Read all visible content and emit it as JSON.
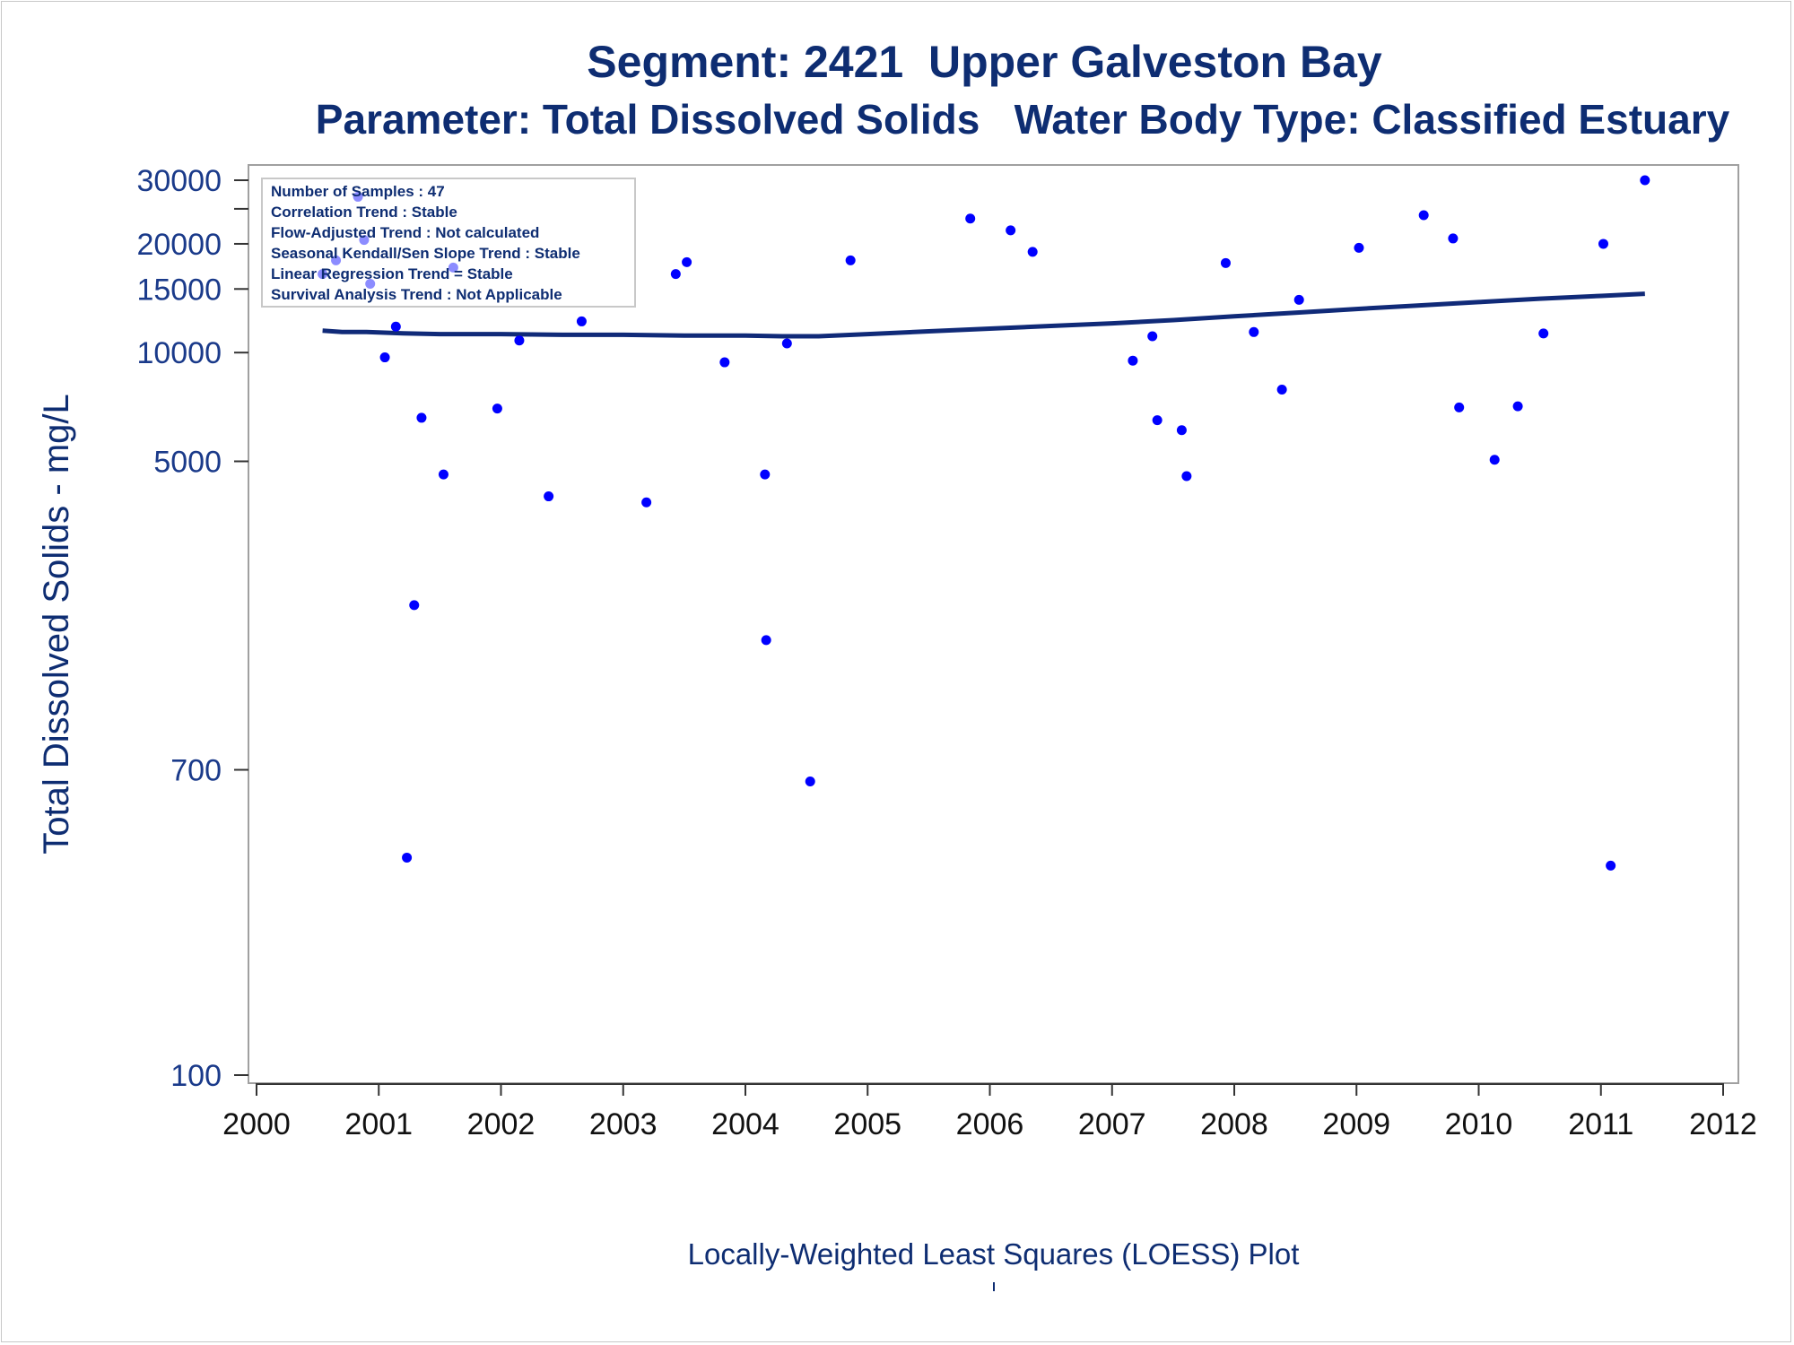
{
  "title": "Segment: 2421  Upper Galveston Bay",
  "subtitle": "Parameter: Total Dissolved Solids   Water Body Type: Classified Estuary",
  "footnote": "Locally-Weighted Least Squares (LOESS) Plot",
  "footnote_mark": "'",
  "colors": {
    "title": "#0e2d72",
    "points": "#0000ff",
    "loess": "#102a78",
    "axis_text": "#1a3a8a",
    "frame": "#a0a0a0"
  },
  "info_box": [
    "Number of Samples : 47",
    "Correlation Trend : Stable",
    "Flow-Adjusted Trend : Not calculated",
    "Seasonal Kendall/Sen Slope Trend : Stable",
    "Linear Regression Trend = Stable",
    "Survival Analysis Trend : Not Applicable"
  ],
  "chart_data": {
    "type": "scatter",
    "title": "Segment: 2421  Upper Galveston Bay",
    "subtitle": "Parameter: Total Dissolved Solids   Water Body Type: Classified Estuary",
    "xlabel": "Locally-Weighted Least Squares (LOESS) Plot",
    "ylabel": "Total Dissolved Solids - mg/L",
    "y_scale": "log",
    "xlim": [
      2000,
      2012
    ],
    "ylim": [
      100,
      30000
    ],
    "x_ticks": [
      2000,
      2001,
      2002,
      2003,
      2004,
      2005,
      2006,
      2007,
      2008,
      2009,
      2010,
      2011,
      2012
    ],
    "y_ticks": [
      100,
      700,
      5000,
      10000,
      15000,
      20000,
      30000
    ],
    "y_tick_labels": [
      "100",
      "700",
      "5000",
      "10000",
      "15000",
      "20000",
      "30000"
    ],
    "y_minor_ticks": [
      25000
    ],
    "grid": false,
    "points": [
      {
        "x": 2000.54,
        "y": 16500
      },
      {
        "x": 2000.65,
        "y": 18000
      },
      {
        "x": 2000.83,
        "y": 27000
      },
      {
        "x": 2000.88,
        "y": 20500
      },
      {
        "x": 2000.93,
        "y": 15500
      },
      {
        "x": 2001.05,
        "y": 9700
      },
      {
        "x": 2001.14,
        "y": 11800
      },
      {
        "x": 2001.23,
        "y": 400
      },
      {
        "x": 2001.29,
        "y": 2000
      },
      {
        "x": 2001.35,
        "y": 6600
      },
      {
        "x": 2001.53,
        "y": 4600
      },
      {
        "x": 2001.61,
        "y": 17200
      },
      {
        "x": 2001.97,
        "y": 7000
      },
      {
        "x": 2002.15,
        "y": 10800
      },
      {
        "x": 2002.39,
        "y": 4000
      },
      {
        "x": 2002.66,
        "y": 12200
      },
      {
        "x": 2003.19,
        "y": 3850
      },
      {
        "x": 2003.43,
        "y": 16500
      },
      {
        "x": 2003.52,
        "y": 17800
      },
      {
        "x": 2003.83,
        "y": 9400
      },
      {
        "x": 2004.16,
        "y": 4600
      },
      {
        "x": 2004.17,
        "y": 1600
      },
      {
        "x": 2004.34,
        "y": 10600
      },
      {
        "x": 2004.53,
        "y": 650
      },
      {
        "x": 2004.86,
        "y": 18000
      },
      {
        "x": 2005.84,
        "y": 23500
      },
      {
        "x": 2006.17,
        "y": 21800
      },
      {
        "x": 2006.35,
        "y": 19000
      },
      {
        "x": 2007.17,
        "y": 9500
      },
      {
        "x": 2007.33,
        "y": 11100
      },
      {
        "x": 2007.37,
        "y": 6500
      },
      {
        "x": 2007.57,
        "y": 6100
      },
      {
        "x": 2007.61,
        "y": 4550
      },
      {
        "x": 2007.93,
        "y": 17700
      },
      {
        "x": 2008.16,
        "y": 11400
      },
      {
        "x": 2008.39,
        "y": 7900
      },
      {
        "x": 2008.53,
        "y": 14000
      },
      {
        "x": 2009.02,
        "y": 19500
      },
      {
        "x": 2009.55,
        "y": 24000
      },
      {
        "x": 2009.79,
        "y": 20700
      },
      {
        "x": 2009.84,
        "y": 7050
      },
      {
        "x": 2010.13,
        "y": 5050
      },
      {
        "x": 2010.32,
        "y": 7100
      },
      {
        "x": 2010.53,
        "y": 11300
      },
      {
        "x": 2011.02,
        "y": 20000
      },
      {
        "x": 2011.08,
        "y": 380
      },
      {
        "x": 2011.36,
        "y": 30000
      }
    ],
    "loess": {
      "x": [
        2000.54,
        2000.7,
        2000.9,
        2001.2,
        2001.5,
        2002.0,
        2002.5,
        2003.0,
        2003.5,
        2004.0,
        2004.3,
        2004.6,
        2005.0,
        2005.5,
        2006.0,
        2006.5,
        2007.0,
        2007.5,
        2008.0,
        2008.5,
        2009.0,
        2009.5,
        2010.0,
        2010.5,
        2011.0,
        2011.36
      ],
      "y": [
        11500,
        11400,
        11400,
        11300,
        11250,
        11250,
        11200,
        11200,
        11150,
        11150,
        11100,
        11100,
        11250,
        11450,
        11650,
        11850,
        12050,
        12300,
        12600,
        12900,
        13200,
        13500,
        13800,
        14100,
        14350,
        14550
      ]
    }
  }
}
